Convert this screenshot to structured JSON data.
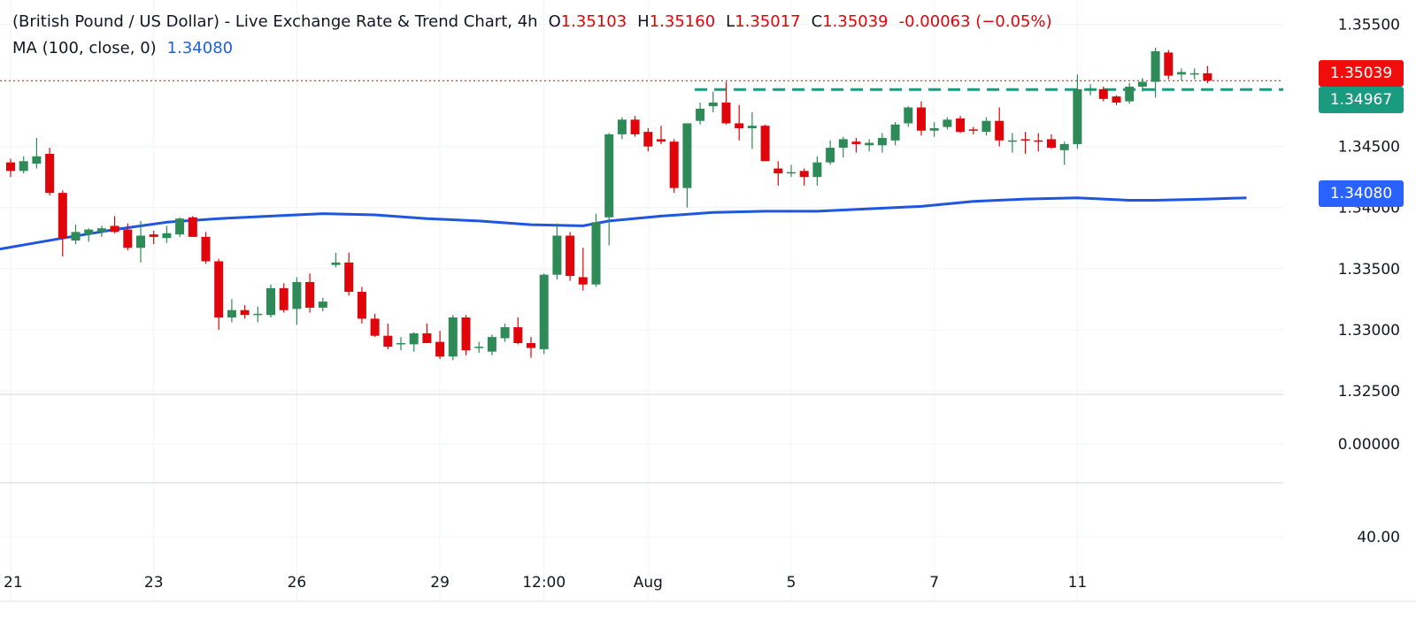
{
  "legend": {
    "title": "(British Pound / US Dollar) - Live Exchange Rate & Trend Chart, 4h",
    "o_label": "O",
    "o_value": "1.35103",
    "h_label": "H",
    "h_value": "1.35160",
    "l_label": "L",
    "l_value": "1.35017",
    "c_label": "C",
    "c_value": "1.35039",
    "change": "-0.00063 (−0.05%)",
    "ma_label": "MA (100, close, 0)",
    "ma_value": "1.34080"
  },
  "badges": {
    "price": "1.35039",
    "level": "1.34967",
    "ma": "1.34080"
  },
  "colors": {
    "up": "#2e8b57",
    "down": "#e0040b",
    "ma": "#1f56e0",
    "level": "#1a9b7f",
    "grid": "#f0f3fa",
    "text": "#131722"
  },
  "chart_data": {
    "type": "candlestick",
    "main_pane": {
      "y_ticks": [
        "1.35500",
        "1.34500",
        "1.34000",
        "1.33500",
        "1.33000",
        "1.32500"
      ],
      "ylim": [
        1.3247,
        1.357
      ],
      "x_ticks": [
        {
          "i": 0,
          "label": "21"
        },
        {
          "i": 11,
          "label": "23"
        },
        {
          "i": 22,
          "label": "26"
        },
        {
          "i": 33,
          "label": "29"
        },
        {
          "i": 41,
          "label": "12:00"
        },
        {
          "i": 49,
          "label": "Aug"
        },
        {
          "i": 60,
          "label": "5"
        },
        {
          "i": 71,
          "label": "7"
        },
        {
          "i": 82,
          "label": "11"
        }
      ],
      "candles": [
        [
          1.3437,
          1.344,
          1.3425,
          1.343
        ],
        [
          1.343,
          1.3442,
          1.3428,
          1.3438
        ],
        [
          1.3436,
          1.3457,
          1.3432,
          1.3442
        ],
        [
          1.3444,
          1.3449,
          1.341,
          1.3412
        ],
        [
          1.3412,
          1.3414,
          1.336,
          1.3375
        ],
        [
          1.3373,
          1.3386,
          1.337,
          1.338
        ],
        [
          1.3378,
          1.3383,
          1.3372,
          1.3382
        ],
        [
          1.338,
          1.3385,
          1.3376,
          1.3383
        ],
        [
          1.3385,
          1.3393,
          1.3379,
          1.338
        ],
        [
          1.3382,
          1.3387,
          1.3365,
          1.3367
        ],
        [
          1.3367,
          1.3389,
          1.3355,
          1.3377
        ],
        [
          1.3378,
          1.3381,
          1.337,
          1.3376
        ],
        [
          1.3375,
          1.3385,
          1.3371,
          1.3379
        ],
        [
          1.3378,
          1.3392,
          1.3376,
          1.3391
        ],
        [
          1.3392,
          1.3393,
          1.3376,
          1.3376
        ],
        [
          1.3376,
          1.338,
          1.3354,
          1.3356
        ],
        [
          1.3356,
          1.3358,
          1.33,
          1.331
        ],
        [
          1.331,
          1.3325,
          1.3306,
          1.3316
        ],
        [
          1.3316,
          1.332,
          1.3309,
          1.3312
        ],
        [
          1.3313,
          1.3319,
          1.3306,
          1.3313
        ],
        [
          1.3312,
          1.3337,
          1.331,
          1.3334
        ],
        [
          1.3334,
          1.3338,
          1.3314,
          1.3316
        ],
        [
          1.3317,
          1.3343,
          1.3304,
          1.3339
        ],
        [
          1.3339,
          1.3346,
          1.3314,
          1.3318
        ],
        [
          1.3318,
          1.3326,
          1.3315,
          1.3323
        ],
        [
          1.3353,
          1.3363,
          1.3351,
          1.3355
        ],
        [
          1.3355,
          1.3363,
          1.3328,
          1.3331
        ],
        [
          1.3331,
          1.3335,
          1.3305,
          1.3309
        ],
        [
          1.3309,
          1.3313,
          1.3294,
          1.3295
        ],
        [
          1.3295,
          1.3305,
          1.3284,
          1.3286
        ],
        [
          1.3288,
          1.3294,
          1.3283,
          1.3289
        ],
        [
          1.3288,
          1.3298,
          1.3282,
          1.3297
        ],
        [
          1.3297,
          1.3305,
          1.329,
          1.3289
        ],
        [
          1.329,
          1.3299,
          1.3276,
          1.3278
        ],
        [
          1.3278,
          1.3312,
          1.3275,
          1.331
        ],
        [
          1.331,
          1.3312,
          1.3279,
          1.3283
        ],
        [
          1.3285,
          1.329,
          1.3281,
          1.3286
        ],
        [
          1.3282,
          1.3296,
          1.3279,
          1.3294
        ],
        [
          1.3293,
          1.3305,
          1.329,
          1.3302
        ],
        [
          1.3302,
          1.331,
          1.3288,
          1.3289
        ],
        [
          1.3289,
          1.3294,
          1.3277,
          1.3285
        ],
        [
          1.3284,
          1.3346,
          1.328,
          1.3345
        ],
        [
          1.3345,
          1.3387,
          1.3341,
          1.3377
        ],
        [
          1.3377,
          1.338,
          1.334,
          1.3344
        ],
        [
          1.3343,
          1.3367,
          1.3332,
          1.3337
        ],
        [
          1.3337,
          1.3395,
          1.3335,
          1.3388
        ],
        [
          1.3392,
          1.3461,
          1.3369,
          1.346
        ],
        [
          1.346,
          1.3474,
          1.3456,
          1.3472
        ],
        [
          1.3472,
          1.3475,
          1.3458,
          1.346
        ],
        [
          1.3462,
          1.3465,
          1.3446,
          1.345
        ],
        [
          1.3456,
          1.3467,
          1.3452,
          1.3454
        ],
        [
          1.3454,
          1.3456,
          1.3412,
          1.3416
        ],
        [
          1.3416,
          1.3469,
          1.34,
          1.3469
        ],
        [
          1.3471,
          1.3486,
          1.3468,
          1.3481
        ],
        [
          1.3483,
          1.3495,
          1.3478,
          1.3486
        ],
        [
          1.3486,
          1.3503,
          1.3468,
          1.3469
        ],
        [
          1.3469,
          1.3484,
          1.3455,
          1.3465
        ],
        [
          1.3465,
          1.3478,
          1.3448,
          1.3467
        ],
        [
          1.3467,
          1.3468,
          1.344,
          1.3438
        ],
        [
          1.3432,
          1.3438,
          1.3418,
          1.3428
        ],
        [
          1.3428,
          1.3435,
          1.3425,
          1.3429
        ],
        [
          1.343,
          1.3432,
          1.3418,
          1.3425
        ],
        [
          1.3425,
          1.3442,
          1.3418,
          1.3437
        ],
        [
          1.3437,
          1.3455,
          1.3435,
          1.3449
        ],
        [
          1.3449,
          1.3458,
          1.3441,
          1.3456
        ],
        [
          1.3454,
          1.3457,
          1.3445,
          1.3452
        ],
        [
          1.3451,
          1.3456,
          1.3446,
          1.3453
        ],
        [
          1.3451,
          1.3461,
          1.3445,
          1.3457
        ],
        [
          1.3455,
          1.347,
          1.3451,
          1.3468
        ],
        [
          1.3469,
          1.3483,
          1.3466,
          1.3482
        ],
        [
          1.3482,
          1.3487,
          1.3459,
          1.3463
        ],
        [
          1.3463,
          1.347,
          1.3458,
          1.3465
        ],
        [
          1.3466,
          1.3474,
          1.3464,
          1.3472
        ],
        [
          1.3473,
          1.3475,
          1.3461,
          1.3462
        ],
        [
          1.3464,
          1.3466,
          1.346,
          1.3463
        ],
        [
          1.3462,
          1.3474,
          1.3459,
          1.3471
        ],
        [
          1.3471,
          1.3482,
          1.345,
          1.3455
        ],
        [
          1.3455,
          1.3461,
          1.3445,
          1.3455
        ],
        [
          1.3456,
          1.3462,
          1.3444,
          1.3455
        ],
        [
          1.3455,
          1.3461,
          1.3446,
          1.3454
        ],
        [
          1.3456,
          1.346,
          1.3448,
          1.3449
        ],
        [
          1.3447,
          1.3454,
          1.3435,
          1.3452
        ],
        [
          1.3452,
          1.3509,
          1.3448,
          1.3497
        ],
        [
          1.3497,
          1.3501,
          1.3492,
          1.3497
        ],
        [
          1.3497,
          1.3499,
          1.3487,
          1.3489
        ],
        [
          1.3491,
          1.3492,
          1.3484,
          1.3486
        ],
        [
          1.3487,
          1.3502,
          1.3485,
          1.3499
        ],
        [
          1.3499,
          1.3506,
          1.3495,
          1.3503
        ],
        [
          1.3503,
          1.3531,
          1.349,
          1.3528
        ],
        [
          1.3527,
          1.3529,
          1.3505,
          1.3508
        ],
        [
          1.3509,
          1.3514,
          1.3504,
          1.3511
        ],
        [
          1.351,
          1.3514,
          1.3505,
          1.351
        ],
        [
          1.351,
          1.3516,
          1.3502,
          1.3504
        ]
      ],
      "ma_series": {
        "name": "MA (100, close, 0)",
        "points": [
          [
            0,
            1.3366
          ],
          [
            4,
            1.3375
          ],
          [
            8,
            1.3382
          ],
          [
            12,
            1.3388
          ],
          [
            16,
            1.3391
          ],
          [
            20,
            1.3393
          ],
          [
            24,
            1.3395
          ],
          [
            28,
            1.3394
          ],
          [
            32,
            1.3391
          ],
          [
            36,
            1.3389
          ],
          [
            40,
            1.3386
          ],
          [
            44,
            1.3385
          ],
          [
            46,
            1.3389
          ],
          [
            50,
            1.3393
          ],
          [
            54,
            1.3396
          ],
          [
            58,
            1.3397
          ],
          [
            62,
            1.3397
          ],
          [
            66,
            1.3399
          ],
          [
            70,
            1.3401
          ],
          [
            74,
            1.3405
          ],
          [
            78,
            1.3407
          ],
          [
            82,
            1.3408
          ],
          [
            86,
            1.3406
          ],
          [
            88,
            1.3406
          ],
          [
            92,
            1.3407
          ],
          [
            95,
            1.3408
          ]
        ]
      },
      "horizontal_levels": [
        {
          "value": 1.34967,
          "style": "dashed",
          "from_index": 53
        },
        {
          "value": 1.35039,
          "style": "dotted"
        }
      ]
    },
    "lower_pane_1": {
      "y_ticks": [
        "0.00000"
      ]
    },
    "lower_pane_2": {
      "y_ticks": [
        "40.00"
      ]
    }
  }
}
